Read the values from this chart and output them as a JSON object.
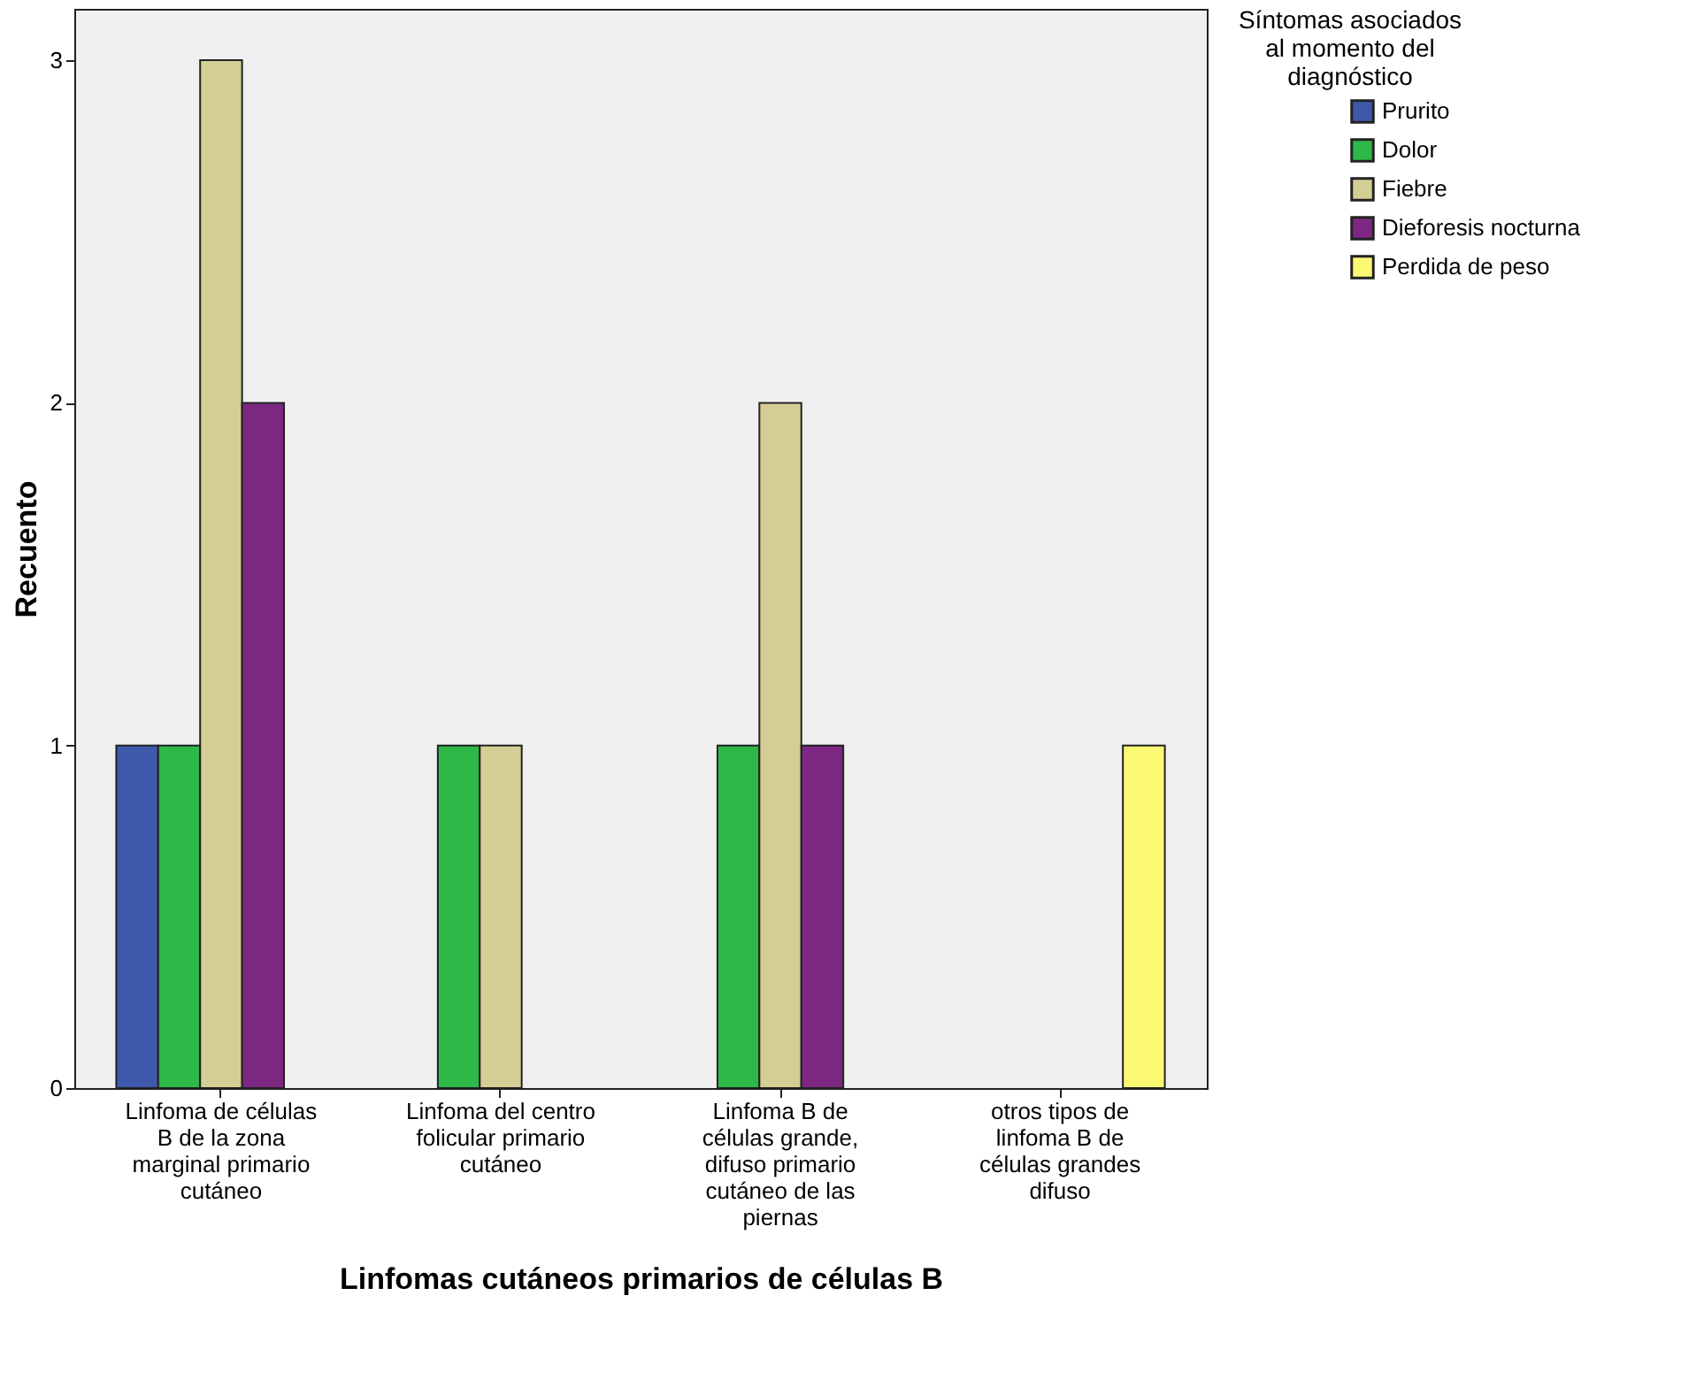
{
  "chart_data": {
    "type": "bar",
    "xlabel": "Linfomas cutáneos primarios de células B",
    "ylabel": "Recuento",
    "legend_title": "Síntomas asociados al momento del diagnóstico",
    "categories": [
      "Linfoma de células B de la zona marginal primario cutáneo",
      "Linfoma del centro folicular primario cutáneo",
      "Linfoma B de células  grande, difuso primario cutáneo de las piernas",
      "otros tipos de linfoma B de células grandes difuso"
    ],
    "series": [
      {
        "name": "Prurito",
        "color": "#3e58ac",
        "values": [
          1,
          null,
          null,
          null
        ]
      },
      {
        "name": "Dolor",
        "color": "#2eb848",
        "values": [
          1,
          1,
          1,
          null
        ]
      },
      {
        "name": "Fiebre",
        "color": "#d4ce96",
        "values": [
          3,
          1,
          2,
          null
        ]
      },
      {
        "name": "Dieforesis nocturna",
        "color": "#7c2882",
        "values": [
          2,
          null,
          1,
          null
        ]
      },
      {
        "name": "Perdida de peso",
        "color": "#fbf873",
        "values": [
          null,
          null,
          null,
          1
        ]
      }
    ],
    "ylim": [
      0,
      3.15
    ],
    "yticks": [
      0,
      1,
      2,
      3
    ],
    "grid": false,
    "legend": "top right"
  }
}
